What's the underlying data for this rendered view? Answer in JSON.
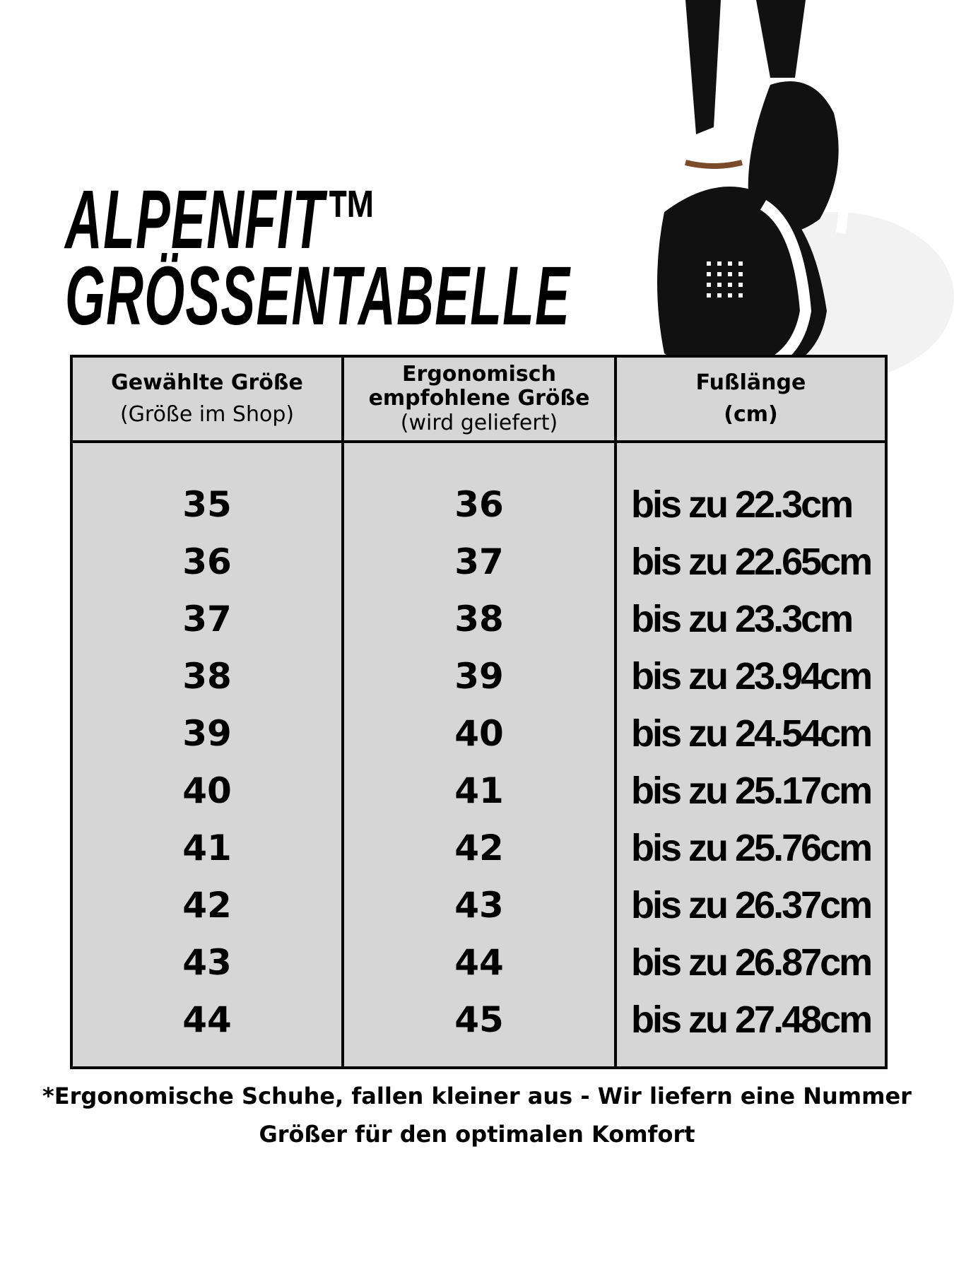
{
  "title": {
    "line1": "ALPENFIT™",
    "line2": "GRÖSSENTABELLE"
  },
  "table": {
    "headers": [
      {
        "bold": "Gewählte Größe",
        "light": "(Größe im Shop)"
      },
      {
        "bold": "Ergonomisch empfohlene Größe",
        "light": "(wird geliefert)"
      },
      {
        "bold": "Fußlänge",
        "light": "(cm)"
      }
    ],
    "rows": [
      {
        "chosen": "35",
        "recommended": "36",
        "length": "bis zu 22.3cm"
      },
      {
        "chosen": "36",
        "recommended": "37",
        "length": "bis zu 22.65cm"
      },
      {
        "chosen": "37",
        "recommended": "38",
        "length": "bis zu 23.3cm"
      },
      {
        "chosen": "38",
        "recommended": "39",
        "length": "bis zu 23.94cm"
      },
      {
        "chosen": "39",
        "recommended": "40",
        "length": "bis zu 24.54cm"
      },
      {
        "chosen": "40",
        "recommended": "41",
        "length": "bis zu 25.17cm"
      },
      {
        "chosen": "41",
        "recommended": "42",
        "length": "bis zu 25.76cm"
      },
      {
        "chosen": "42",
        "recommended": "43",
        "length": "bis zu 26.37cm"
      },
      {
        "chosen": "43",
        "recommended": "44",
        "length": "bis zu 26.87cm"
      },
      {
        "chosen": "44",
        "recommended": "45",
        "length": "bis zu 27.48cm"
      }
    ]
  },
  "footnote": {
    "line1": "*Ergonomische Schuhe, fallen kleiner aus - Wir liefern eine Nummer",
    "line2": "Größer für den optimalen Komfort"
  },
  "colors": {
    "table_bg": "#d6d6d6",
    "border": "#000000"
  }
}
